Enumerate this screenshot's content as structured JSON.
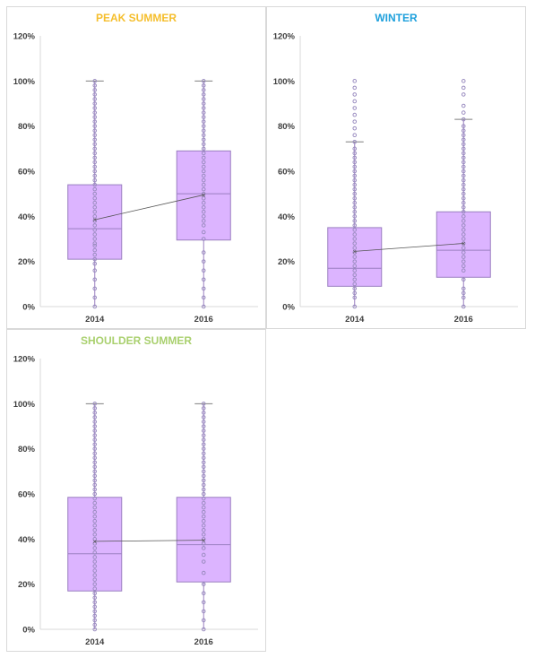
{
  "colors": {
    "box_fill": "#dcb4ff",
    "box_stroke": "#9a7fc0",
    "point": "#9a8cc0",
    "mean_line": "#555555",
    "axis": "#d9d9d9",
    "peak_title": "#f5be2c",
    "winter_title": "#1ea0dc",
    "shoulder_title": "#a9d06e"
  },
  "chart_data": [
    {
      "type": "box",
      "title": "PEAK SUMMER",
      "title_color": "#f5be2c",
      "categories": [
        "2014",
        "2016"
      ],
      "y_ticks": [
        "0%",
        "20%",
        "40%",
        "60%",
        "80%",
        "100%",
        "120%"
      ],
      "ylim": [
        0,
        120
      ],
      "boxes": [
        {
          "category": "2014",
          "min": 0,
          "q1": 21,
          "median": 34.5,
          "q3": 54,
          "max": 100,
          "mean": 38.5,
          "points": [
            0,
            4,
            8,
            12,
            16,
            19,
            21,
            23,
            25,
            27,
            28,
            30,
            32,
            34,
            36,
            38,
            40,
            42,
            44,
            46,
            48,
            50,
            52,
            54,
            56,
            58,
            60,
            62,
            64,
            66,
            68,
            70,
            72,
            74,
            76,
            78,
            80,
            82,
            84,
            86,
            88,
            90,
            92,
            94,
            96,
            98,
            100
          ]
        },
        {
          "category": "2016",
          "min": 0,
          "q1": 29.5,
          "median": 50,
          "q3": 69,
          "max": 100,
          "mean": 49.5,
          "points": [
            0,
            4,
            8,
            12,
            16,
            20,
            24,
            30,
            33,
            36,
            38,
            40,
            42,
            44,
            46,
            48,
            50,
            52,
            54,
            56,
            58,
            60,
            62,
            64,
            66,
            68,
            70,
            72,
            74,
            76,
            78,
            80,
            82,
            84,
            86,
            88,
            90,
            92,
            94,
            96,
            98,
            100
          ]
        }
      ]
    },
    {
      "type": "box",
      "title": "WINTER",
      "title_color": "#1ea0dc",
      "categories": [
        "2014",
        "2016"
      ],
      "y_ticks": [
        "0%",
        "20%",
        "40%",
        "60%",
        "80%",
        "100%",
        "120%"
      ],
      "ylim": [
        0,
        120
      ],
      "boxes": [
        {
          "category": "2014",
          "min": 0,
          "q1": 9,
          "median": 17,
          "q3": 35,
          "max": 73,
          "mean": 24.5,
          "points": [
            0,
            4,
            6,
            8,
            10,
            12,
            14,
            16,
            18,
            20,
            22,
            24,
            26,
            28,
            30,
            32,
            34,
            36,
            38,
            40,
            42,
            44,
            46,
            48,
            50,
            52,
            54,
            56,
            58,
            60,
            62,
            64,
            66,
            68,
            70,
            73,
            76,
            79,
            82,
            85,
            88,
            91,
            94,
            97,
            100
          ]
        },
        {
          "category": "2016",
          "min": 0,
          "q1": 13,
          "median": 25,
          "q3": 42,
          "max": 83,
          "mean": 28,
          "points": [
            0,
            4,
            6,
            8,
            12,
            16,
            18,
            20,
            22,
            24,
            26,
            28,
            30,
            32,
            34,
            36,
            38,
            40,
            42,
            44,
            46,
            48,
            50,
            52,
            54,
            56,
            58,
            60,
            62,
            64,
            66,
            68,
            70,
            72,
            74,
            76,
            78,
            80,
            83,
            86,
            89,
            94,
            97,
            100
          ]
        }
      ]
    },
    {
      "type": "box",
      "title": "SHOULDER SUMMER",
      "title_color": "#a9d06e",
      "categories": [
        "2014",
        "2016"
      ],
      "y_ticks": [
        "0%",
        "20%",
        "40%",
        "60%",
        "80%",
        "100%",
        "120%"
      ],
      "ylim": [
        0,
        120
      ],
      "boxes": [
        {
          "category": "2014",
          "min": 0,
          "q1": 17,
          "median": 33.5,
          "q3": 58.5,
          "max": 100,
          "mean": 39,
          "points": [
            0,
            2,
            4,
            6,
            8,
            10,
            12,
            14,
            16,
            18,
            20,
            22,
            24,
            26,
            28,
            30,
            32,
            34,
            36,
            38,
            40,
            42,
            44,
            46,
            48,
            50,
            52,
            54,
            56,
            58,
            60,
            62,
            64,
            66,
            68,
            70,
            72,
            74,
            76,
            78,
            80,
            82,
            84,
            86,
            88,
            90,
            92,
            94,
            96,
            98,
            100
          ]
        },
        {
          "category": "2016",
          "min": 0,
          "q1": 21,
          "median": 37.5,
          "q3": 58.5,
          "max": 100,
          "mean": 39.5,
          "points": [
            0,
            4,
            8,
            12,
            16,
            20,
            25,
            30,
            33,
            36,
            38,
            40,
            42,
            44,
            46,
            48,
            50,
            52,
            54,
            56,
            58,
            60,
            62,
            64,
            66,
            68,
            70,
            72,
            74,
            76,
            78,
            80,
            82,
            84,
            86,
            88,
            90,
            92,
            94,
            96,
            98,
            100
          ]
        }
      ]
    }
  ]
}
